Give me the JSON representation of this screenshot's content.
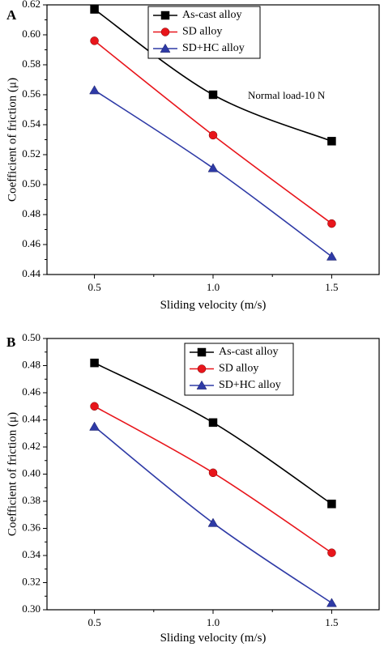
{
  "chart_data": [
    {
      "panel": "A",
      "type": "line",
      "xlabel": "Sliding velocity (m/s)",
      "ylabel": "Coefficient of friction (μ)",
      "x": [
        0.5,
        1.0,
        1.5
      ],
      "xticks": [
        "0.5",
        "1.0",
        "1.5"
      ],
      "xlim": [
        0.3,
        1.7
      ],
      "ylim": [
        0.44,
        0.62
      ],
      "yticks": [
        "0.44",
        "0.46",
        "0.48",
        "0.50",
        "0.52",
        "0.54",
        "0.56",
        "0.58",
        "0.60",
        "0.62"
      ],
      "annotation": "Normal load-10 N",
      "legend_position": "top-right",
      "grid": false,
      "series": [
        {
          "name": "As-cast alloy",
          "values": [
            0.617,
            0.56,
            0.529
          ],
          "color": "#000000",
          "marker": "square"
        },
        {
          "name": "SD alloy",
          "values": [
            0.596,
            0.533,
            0.474
          ],
          "color": "#e8151b",
          "marker": "circle"
        },
        {
          "name": "SD+HC alloy",
          "values": [
            0.563,
            0.511,
            0.452
          ],
          "color": "#2e3aa6",
          "marker": "triangle"
        }
      ]
    },
    {
      "panel": "B",
      "type": "line",
      "xlabel": "Sliding velocity (m/s)",
      "ylabel": "Coefficient of friction (μ)",
      "x": [
        0.5,
        1.0,
        1.5
      ],
      "xticks": [
        "0.5",
        "1.0",
        "1.5"
      ],
      "xlim": [
        0.3,
        1.7
      ],
      "ylim": [
        0.3,
        0.5
      ],
      "yticks": [
        "0.30",
        "0.32",
        "0.34",
        "0.36",
        "0.38",
        "0.40",
        "0.42",
        "0.44",
        "0.46",
        "0.48",
        "0.50"
      ],
      "annotation": "",
      "legend_position": "top-right",
      "grid": false,
      "series": [
        {
          "name": "As-cast alloy",
          "values": [
            0.482,
            0.438,
            0.378
          ],
          "color": "#000000",
          "marker": "square"
        },
        {
          "name": "SD alloy",
          "values": [
            0.45,
            0.401,
            0.342
          ],
          "color": "#e8151b",
          "marker": "circle"
        },
        {
          "name": "SD+HC alloy",
          "values": [
            0.435,
            0.364,
            0.305
          ],
          "color": "#2e3aa6",
          "marker": "triangle"
        }
      ]
    }
  ]
}
